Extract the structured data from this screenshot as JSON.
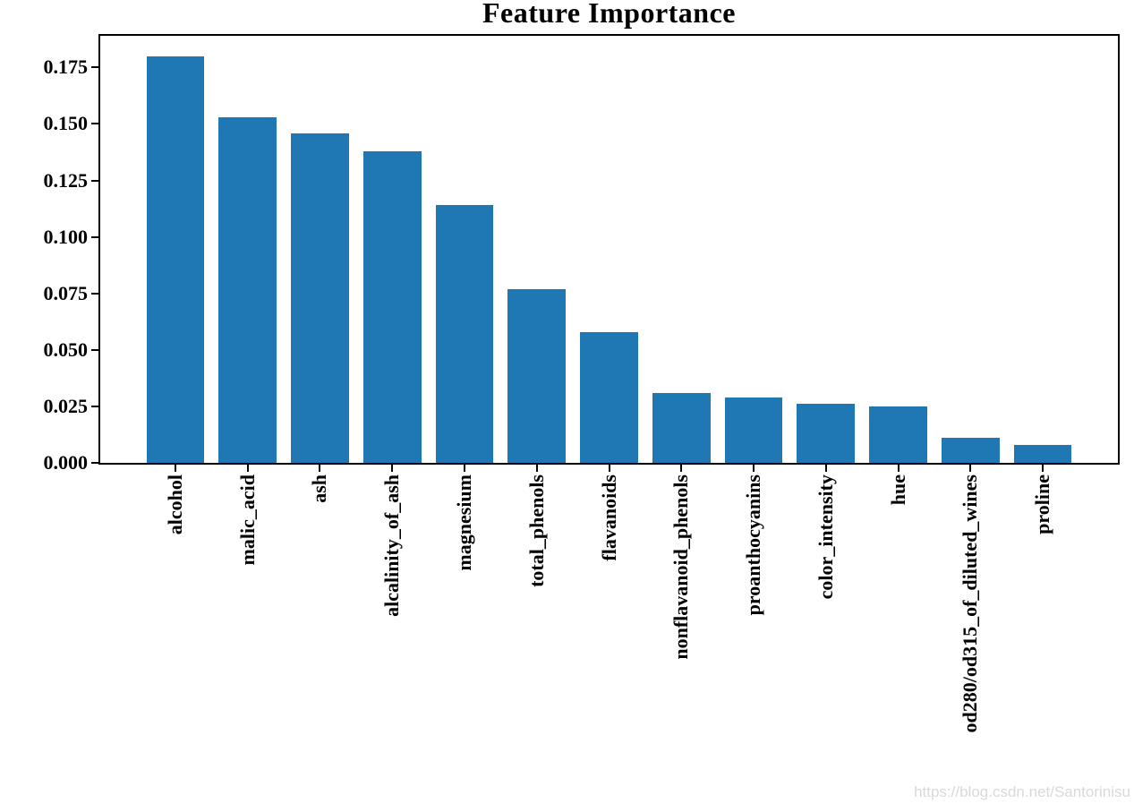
{
  "chart_data": {
    "type": "bar",
    "title": "Feature Importance",
    "categories": [
      "alcohol",
      "malic_acid",
      "ash",
      "alcalinity_of_ash",
      "magnesium",
      "total_phenols",
      "flavanoids",
      "nonflavanoid_phenols",
      "proanthocyanins",
      "color_intensity",
      "hue",
      "od280/od315_of_diluted_wines",
      "proline"
    ],
    "values": [
      0.18,
      0.153,
      0.146,
      0.138,
      0.114,
      0.077,
      0.058,
      0.031,
      0.029,
      0.026,
      0.025,
      0.011,
      0.008
    ],
    "xlabel": "",
    "ylabel": "",
    "ylim": [
      0,
      0.189
    ],
    "yticks": [
      0.0,
      0.025,
      0.05,
      0.075,
      0.1,
      0.125,
      0.15,
      0.175
    ],
    "ytick_decimals": 3,
    "xtick_label_rotation_deg": 90,
    "grid": false,
    "legend_position": "none",
    "bar_color": "#1f77b4",
    "spine_color": "#000000",
    "text_color": "#000000",
    "background_color": "#ffffff"
  },
  "watermark": {
    "text": "https://blog.csdn.net/Santorinisu",
    "color": "#dadada"
  }
}
